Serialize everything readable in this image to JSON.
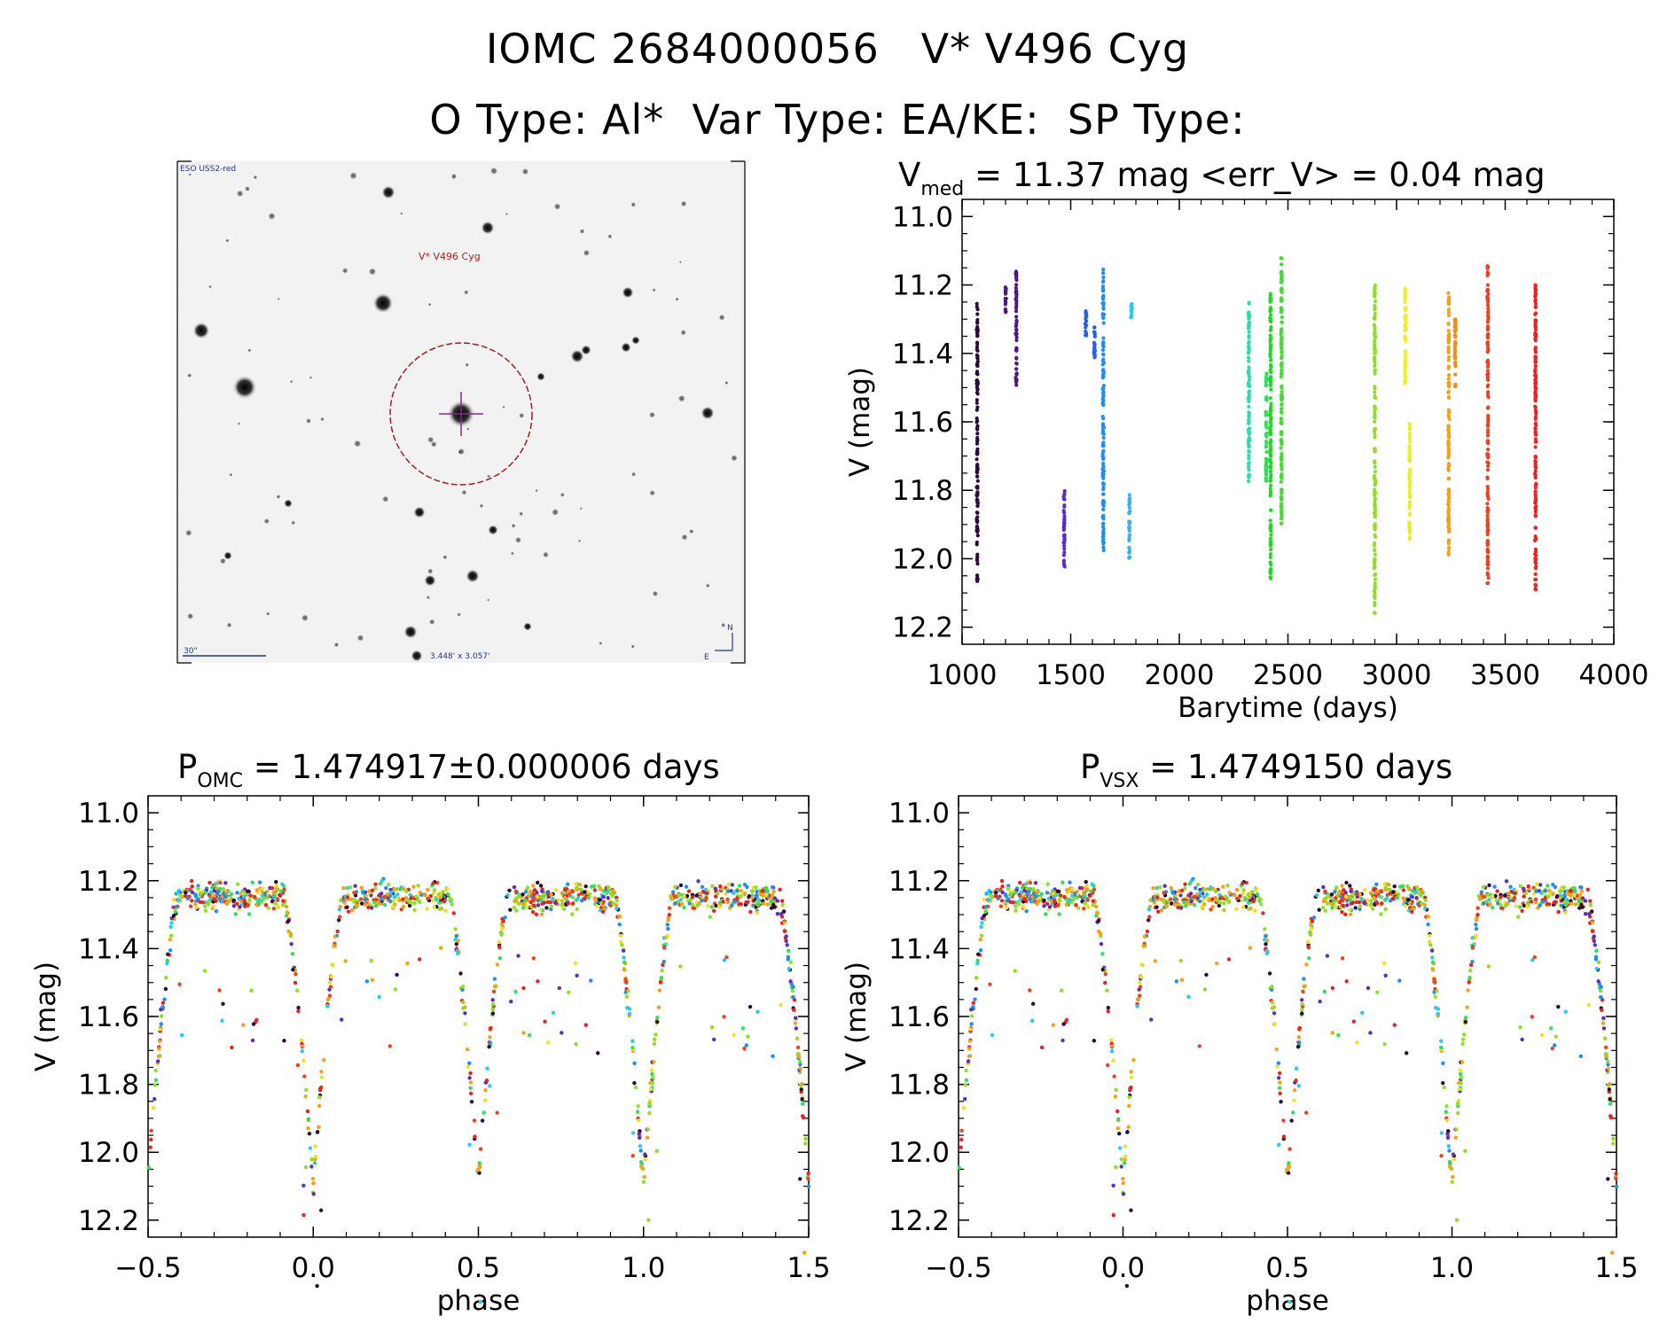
{
  "header": {
    "title_line1": "IOMC 2684000056   V* V496 Cyg",
    "title_line2": "O Type: Al*  Var Type: EA/KE:  SP Type:"
  },
  "finder": {
    "survey": "ESO USS2-red",
    "target_label": "V* V496 Cyg",
    "scale_label": "30\"",
    "field_label": "3.448' x 3.057'",
    "north": "N",
    "east": "E"
  },
  "chart_data": [
    {
      "type": "scatter",
      "id": "lightcurve",
      "title_main": "V",
      "title_sub": "med",
      "title_rest": " = 11.37 mag <err_V> = 0.04 mag",
      "xlabel": "Barytime (days)",
      "ylabel": "V (mag)",
      "xlim": [
        1000,
        4000
      ],
      "ylim": [
        12.25,
        10.95
      ],
      "y_inverted": true,
      "xticks": [
        1000,
        1500,
        2000,
        2500,
        3000,
        3500,
        4000
      ],
      "xtick_labels": [
        "1000",
        "1500",
        "2000",
        "2500",
        "3000",
        "3500",
        "4000"
      ],
      "yticks": [
        11.0,
        11.2,
        11.4,
        11.6,
        11.8,
        12.0,
        12.2
      ],
      "ytick_labels": [
        "11.0",
        "11.2",
        "11.4",
        "11.6",
        "11.8",
        "12.0",
        "12.2"
      ],
      "color_by_time": true,
      "clusters": [
        {
          "t": 1070,
          "vmin": 11.25,
          "vmax": 12.08,
          "color": "#2a0a3a"
        },
        {
          "t": 1200,
          "vmin": 11.2,
          "vmax": 11.28,
          "color": "#4b1a7a"
        },
        {
          "t": 1250,
          "vmin": 11.16,
          "vmax": 11.5,
          "color": "#4b1a7a"
        },
        {
          "t": 1470,
          "vmin": 11.8,
          "vmax": 12.03,
          "color": "#5a2fc0"
        },
        {
          "t": 1570,
          "vmin": 11.27,
          "vmax": 11.35,
          "color": "#2a5ee8"
        },
        {
          "t": 1610,
          "vmin": 11.32,
          "vmax": 11.42,
          "color": "#2a5ee8"
        },
        {
          "t": 1650,
          "vmin": 11.14,
          "vmax": 11.98,
          "color": "#1e8ef0"
        },
        {
          "t": 1770,
          "vmin": 11.81,
          "vmax": 12.0,
          "color": "#3ab0f0"
        },
        {
          "t": 1780,
          "vmin": 11.25,
          "vmax": 11.3,
          "color": "#22ccf2"
        },
        {
          "t": 2320,
          "vmin": 11.25,
          "vmax": 11.78,
          "color": "#22e0a8"
        },
        {
          "t": 2400,
          "vmin": 11.45,
          "vmax": 11.78,
          "color": "#2ee05a"
        },
        {
          "t": 2420,
          "vmin": 11.22,
          "vmax": 12.08,
          "color": "#22d822"
        },
        {
          "t": 2470,
          "vmin": 11.12,
          "vmax": 11.9,
          "color": "#3ee02a"
        },
        {
          "t": 2900,
          "vmin": 11.2,
          "vmax": 12.16,
          "color": "#8ee020"
        },
        {
          "t": 3040,
          "vmin": 11.2,
          "vmax": 11.5,
          "color": "#f0f020"
        },
        {
          "t": 3060,
          "vmin": 11.6,
          "vmax": 11.95,
          "color": "#e8f020"
        },
        {
          "t": 3240,
          "vmin": 11.22,
          "vmax": 12.0,
          "color": "#f8a010"
        },
        {
          "t": 3270,
          "vmin": 11.3,
          "vmax": 11.5,
          "color": "#f88a10"
        },
        {
          "t": 3420,
          "vmin": 11.14,
          "vmax": 12.08,
          "color": "#f04020"
        },
        {
          "t": 3640,
          "vmin": 11.2,
          "vmax": 12.1,
          "color": "#f02020"
        }
      ]
    },
    {
      "type": "scatter",
      "id": "phase_omc",
      "title_main": "P",
      "title_sub": "OMC",
      "title_rest": " = 1.474917±0.000006 days",
      "xlabel": "phase",
      "ylabel": "V (mag)",
      "xlim": [
        -0.5,
        1.5
      ],
      "ylim": [
        12.25,
        10.95
      ],
      "y_inverted": true,
      "xticks": [
        -0.5,
        0.0,
        0.5,
        1.0,
        1.5
      ],
      "xtick_labels": [
        "−0.5",
        "0.0",
        "0.5",
        "1.0",
        "1.5"
      ],
      "yticks": [
        11.0,
        11.2,
        11.4,
        11.6,
        11.8,
        12.0,
        12.2
      ],
      "ytick_labels": [
        "11.0",
        "11.2",
        "11.4",
        "11.6",
        "11.8",
        "12.0",
        "12.2"
      ],
      "curve": {
        "max_mag": 11.25,
        "primary_min_phase": 0.0,
        "primary_min_mag": 12.1,
        "secondary_min_phase": 0.5,
        "secondary_min_mag": 12.08
      }
    },
    {
      "type": "scatter",
      "id": "phase_vsx",
      "title_main": "P",
      "title_sub": "VSX",
      "title_rest": " = 1.4749150 days",
      "xlabel": "phase",
      "ylabel": "V (mag)",
      "xlim": [
        -0.5,
        1.5
      ],
      "ylim": [
        12.25,
        10.95
      ],
      "y_inverted": true,
      "xticks": [
        -0.5,
        0.0,
        0.5,
        1.0,
        1.5
      ],
      "xtick_labels": [
        "−0.5",
        "0.0",
        "0.5",
        "1.0",
        "1.5"
      ],
      "yticks": [
        11.0,
        11.2,
        11.4,
        11.6,
        11.8,
        12.0,
        12.2
      ],
      "ytick_labels": [
        "11.0",
        "11.2",
        "11.4",
        "11.6",
        "11.8",
        "12.0",
        "12.2"
      ],
      "curve": {
        "max_mag": 11.25,
        "primary_min_phase": 0.0,
        "primary_min_mag": 12.1,
        "secondary_min_phase": 0.5,
        "secondary_min_mag": 12.08
      }
    }
  ]
}
